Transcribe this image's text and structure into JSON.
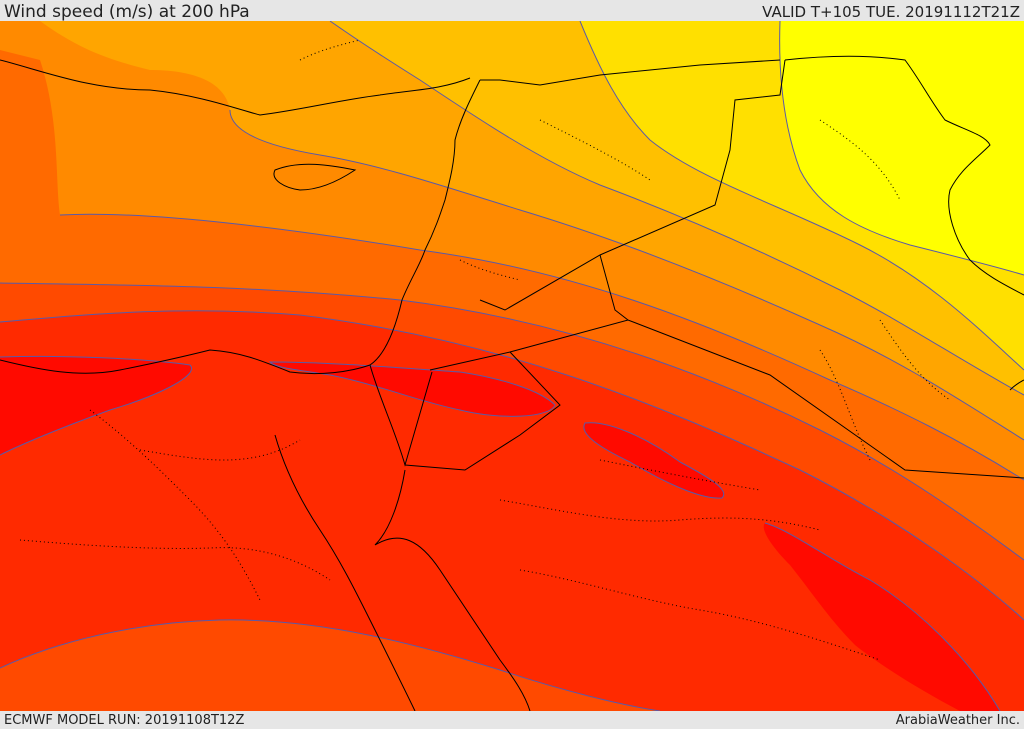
{
  "header": {
    "title": "Wind speed (m/s) at 200 hPa",
    "valid": "VALID T+105 TUE. 20191112T21Z"
  },
  "footer": {
    "model_run": "ECMWF MODEL RUN: 20191108T12Z",
    "credit": "ArabiaWeather Inc."
  },
  "map": {
    "variable": "wind speed",
    "level": "200 hPa",
    "colors": {
      "yellow": "#ffff00",
      "light_yellow": "#ffe000",
      "gold": "#ffc000",
      "amber": "#ffa500",
      "orange": "#ff8a00",
      "dark_orange": "#ff6a00",
      "red_orange": "#ff4a00",
      "red": "#ff2a00",
      "deep_red": "#ff0a00",
      "contour": "#5a5aa8",
      "border": "#000000"
    }
  }
}
